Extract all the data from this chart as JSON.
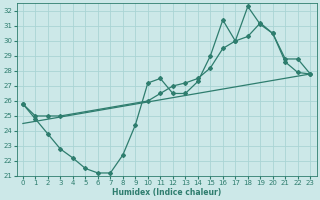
{
  "xlabel": "Humidex (Indice chaleur)",
  "xlim": [
    -0.5,
    23.5
  ],
  "ylim": [
    21,
    32.5
  ],
  "yticks": [
    21,
    22,
    23,
    24,
    25,
    26,
    27,
    28,
    29,
    30,
    31,
    32
  ],
  "xticks": [
    0,
    1,
    2,
    3,
    4,
    5,
    6,
    7,
    8,
    9,
    10,
    11,
    12,
    13,
    14,
    15,
    16,
    17,
    18,
    19,
    20,
    21,
    22,
    23
  ],
  "bg_color": "#cce8e8",
  "grid_color": "#aad4d4",
  "line_color": "#2e7d6e",
  "line1_x": [
    0,
    1,
    2,
    3,
    4,
    5,
    6,
    7,
    8,
    9,
    10,
    11,
    12,
    13,
    14,
    15,
    16,
    17,
    18,
    19,
    20,
    21,
    22,
    23
  ],
  "line1_y": [
    25.8,
    24.8,
    23.8,
    22.8,
    22.2,
    21.5,
    21.2,
    21.2,
    22.4,
    24.4,
    27.2,
    27.5,
    26.5,
    26.5,
    27.3,
    29.0,
    31.4,
    30.0,
    32.3,
    31.1,
    30.5,
    28.6,
    27.9,
    27.8
  ],
  "line2_x": [
    0,
    1,
    2,
    3,
    10,
    11,
    12,
    13,
    14,
    15,
    16,
    17,
    18,
    19,
    20,
    21,
    22,
    23
  ],
  "line2_y": [
    25.8,
    25.0,
    25.0,
    25.0,
    26.0,
    26.5,
    27.0,
    27.2,
    27.5,
    28.2,
    29.5,
    30.0,
    30.3,
    31.2,
    30.5,
    28.8,
    28.8,
    27.8
  ],
  "line3_x": [
    0,
    23
  ],
  "line3_y": [
    24.5,
    27.8
  ]
}
